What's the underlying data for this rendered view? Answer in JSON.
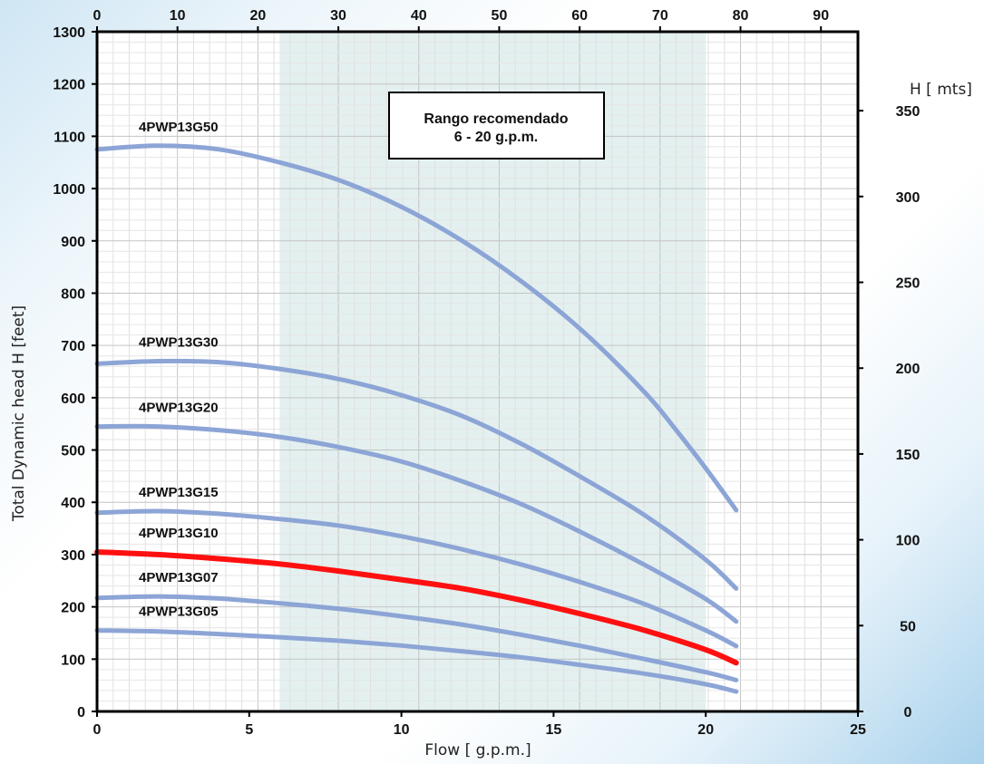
{
  "chart_data": {
    "type": "line",
    "title": "",
    "xlabel": "Flow [ g.p.m.]",
    "ylabel": "Total Dynamic head H [feet]",
    "xlim": [
      0,
      25
    ],
    "ylim": [
      0,
      1300
    ],
    "x_ticks": [
      0,
      5,
      10,
      15,
      20,
      25
    ],
    "y_ticks": [
      0,
      100,
      200,
      300,
      400,
      500,
      600,
      700,
      800,
      900,
      1000,
      1100,
      1200,
      1300
    ],
    "top_axis": {
      "lim": [
        0,
        94.6
      ],
      "ticks": [
        0,
        10,
        20,
        30,
        40,
        50,
        60,
        70,
        80,
        90
      ]
    },
    "right_axis": {
      "label": "H [ mts]",
      "lim": [
        0,
        396
      ],
      "ticks": [
        0,
        50,
        100,
        150,
        200,
        250,
        300,
        350
      ]
    },
    "grid": true,
    "recommended_range": {
      "x": [
        6,
        20
      ],
      "label_line1": "Rango recomendado",
      "label_line2": "6 - 20 g.p.m."
    },
    "series": [
      {
        "name": "4PWP13G50",
        "color": "#8ca5d6",
        "highlight": false,
        "x": [
          0,
          2,
          4,
          6,
          8,
          10,
          12,
          14,
          16,
          18,
          19,
          20,
          21
        ],
        "y": [
          1075,
          1082,
          1075,
          1050,
          1015,
          965,
          900,
          820,
          725,
          610,
          540,
          465,
          385
        ]
      },
      {
        "name": "4PWP13G30",
        "color": "#8ca5d6",
        "highlight": false,
        "x": [
          0,
          2,
          4,
          6,
          8,
          10,
          12,
          14,
          16,
          18,
          20,
          21
        ],
        "y": [
          665,
          670,
          668,
          655,
          635,
          605,
          565,
          510,
          445,
          375,
          290,
          235
        ]
      },
      {
        "name": "4PWP13G20",
        "color": "#8ca5d6",
        "highlight": false,
        "x": [
          0,
          2,
          4,
          6,
          8,
          10,
          12,
          14,
          16,
          18,
          20,
          21
        ],
        "y": [
          545,
          545,
          538,
          525,
          505,
          478,
          440,
          395,
          340,
          280,
          215,
          172
        ]
      },
      {
        "name": "4PWP13G15",
        "color": "#8ca5d6",
        "highlight": false,
        "x": [
          0,
          2,
          4,
          6,
          8,
          10,
          12,
          14,
          16,
          18,
          20,
          21
        ],
        "y": [
          380,
          383,
          378,
          368,
          355,
          335,
          310,
          280,
          245,
          205,
          155,
          125
        ]
      },
      {
        "name": "4PWP13G10",
        "color": "#ff1010",
        "highlight": true,
        "x": [
          0,
          2,
          4,
          6,
          8,
          10,
          12,
          14,
          16,
          18,
          20,
          21
        ],
        "y": [
          305,
          300,
          292,
          282,
          268,
          252,
          235,
          212,
          185,
          155,
          118,
          93
        ]
      },
      {
        "name": "4PWP13G07",
        "color": "#8ca5d6",
        "highlight": false,
        "x": [
          0,
          2,
          4,
          6,
          8,
          10,
          12,
          14,
          16,
          18,
          20,
          21
        ],
        "y": [
          217,
          220,
          216,
          207,
          196,
          182,
          166,
          146,
          124,
          100,
          75,
          60
        ]
      },
      {
        "name": "4PWP13G05",
        "color": "#8ca5d6",
        "highlight": false,
        "x": [
          0,
          2,
          4,
          6,
          8,
          10,
          12,
          14,
          16,
          18,
          20,
          21
        ],
        "y": [
          155,
          153,
          148,
          142,
          135,
          126,
          115,
          103,
          88,
          72,
          52,
          38
        ]
      }
    ]
  }
}
